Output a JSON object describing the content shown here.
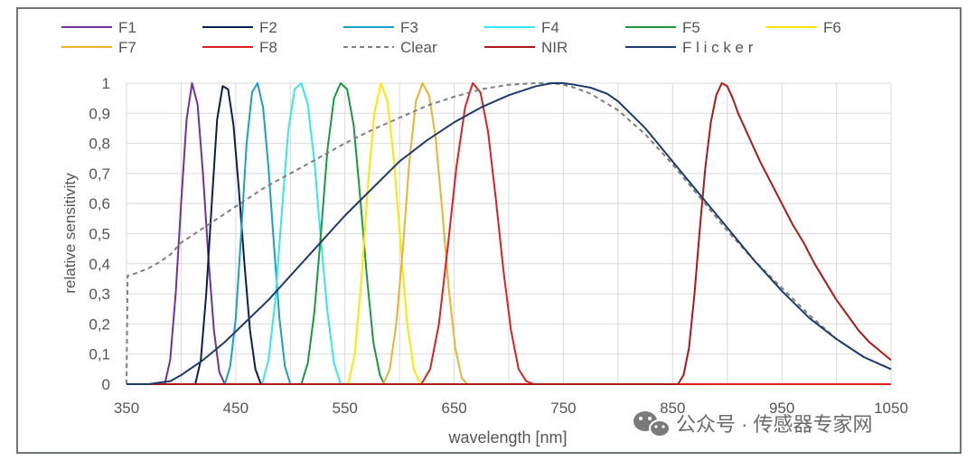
{
  "watermark": {
    "icon": "wechat-icon",
    "text": "公众号 · 传感器专家网"
  },
  "chart_data": {
    "type": "line",
    "xlabel": "wavelength [nm]",
    "ylabel": "relative sensitivity",
    "xlim": [
      350,
      1050
    ],
    "ylim": [
      0,
      1
    ],
    "x_ticks": [
      350,
      450,
      550,
      650,
      750,
      850,
      950,
      1050
    ],
    "y_ticks": [
      "0",
      "0,1",
      "0,2",
      "0,3",
      "0,4",
      "0,5",
      "0,6",
      "0,7",
      "0,8",
      "0,9",
      "1"
    ],
    "grid": true,
    "legend_position": "top",
    "series": [
      {
        "name": "F1",
        "color": "#7030a0",
        "dash": false,
        "x": [
          385,
          390,
          395,
          400,
          405,
          410,
          415,
          420,
          425,
          430,
          435,
          440
        ],
        "y": [
          0,
          0.08,
          0.3,
          0.6,
          0.88,
          1.0,
          0.93,
          0.7,
          0.42,
          0.18,
          0.04,
          0
        ]
      },
      {
        "name": "F2",
        "color": "#0b1f4f",
        "dash": false,
        "x": [
          413,
          418,
          423,
          428,
          433,
          438,
          443,
          448,
          453,
          458,
          463,
          468,
          473
        ],
        "y": [
          0,
          0.08,
          0.3,
          0.6,
          0.88,
          0.99,
          0.98,
          0.86,
          0.64,
          0.4,
          0.18,
          0.05,
          0
        ]
      },
      {
        "name": "F3",
        "color": "#1a9fc8",
        "dash": false,
        "x": [
          440,
          445,
          450,
          455,
          460,
          465,
          470,
          475,
          480,
          485,
          490,
          495,
          500
        ],
        "y": [
          0,
          0.06,
          0.22,
          0.5,
          0.8,
          0.97,
          1.0,
          0.92,
          0.72,
          0.46,
          0.22,
          0.06,
          0
        ]
      },
      {
        "name": "F4",
        "color": "#33e5f5",
        "dash": false,
        "x": [
          474,
          480,
          486,
          492,
          498,
          504,
          510,
          516,
          522,
          528,
          534,
          540,
          546
        ],
        "y": [
          0,
          0.08,
          0.27,
          0.56,
          0.84,
          0.98,
          1.0,
          0.93,
          0.74,
          0.48,
          0.24,
          0.07,
          0
        ]
      },
      {
        "name": "F5",
        "color": "#1a9a3c",
        "dash": false,
        "x": [
          510,
          516,
          522,
          528,
          534,
          540,
          546,
          552,
          558,
          564,
          570,
          576,
          582,
          586
        ],
        "y": [
          0,
          0.07,
          0.24,
          0.5,
          0.78,
          0.95,
          1.0,
          0.98,
          0.86,
          0.62,
          0.36,
          0.14,
          0.03,
          0
        ]
      },
      {
        "name": "F6",
        "color": "#ffe800",
        "dash": false,
        "x": [
          553,
          559,
          565,
          571,
          577,
          583,
          589,
          595,
          601,
          607,
          613,
          619
        ],
        "y": [
          0,
          0.1,
          0.34,
          0.66,
          0.9,
          1.0,
          0.94,
          0.74,
          0.46,
          0.2,
          0.05,
          0
        ]
      },
      {
        "name": "F7",
        "color": "#f0b030",
        "dash": false,
        "x": [
          585,
          591,
          597,
          603,
          609,
          615,
          621,
          627,
          633,
          639,
          645,
          651,
          657,
          662
        ],
        "y": [
          0,
          0.05,
          0.2,
          0.45,
          0.74,
          0.94,
          1.0,
          0.96,
          0.82,
          0.58,
          0.32,
          0.12,
          0.02,
          0
        ]
      },
      {
        "name": "F8",
        "color": "#e02020",
        "dash": false,
        "x": [
          620,
          628,
          636,
          644,
          652,
          660,
          667,
          674,
          681,
          688,
          695,
          702,
          709,
          716,
          723
        ],
        "y": [
          0,
          0.05,
          0.2,
          0.45,
          0.72,
          0.92,
          1.0,
          0.97,
          0.84,
          0.62,
          0.38,
          0.18,
          0.05,
          0.01,
          0
        ]
      },
      {
        "name": "Clear",
        "color": "#808080",
        "dash": true,
        "x": [
          350,
          351,
          360,
          370,
          380,
          390,
          400,
          425,
          450,
          475,
          500,
          525,
          550,
          575,
          600,
          625,
          650,
          675,
          700,
          725,
          740,
          750,
          760,
          775,
          800,
          825,
          850,
          875,
          900,
          925,
          950,
          975,
          1000,
          1025,
          1050
        ],
        "y": [
          0,
          0.36,
          0.37,
          0.385,
          0.405,
          0.43,
          0.47,
          0.53,
          0.59,
          0.65,
          0.7,
          0.75,
          0.8,
          0.845,
          0.885,
          0.925,
          0.955,
          0.98,
          0.995,
          1.0,
          1.0,
          0.995,
          0.985,
          0.965,
          0.91,
          0.83,
          0.73,
          0.62,
          0.51,
          0.41,
          0.32,
          0.23,
          0.15,
          0.09,
          0.05
        ]
      },
      {
        "name": "NIR",
        "color": "#b01818",
        "dash": false,
        "x": [
          855,
          860,
          865,
          870,
          875,
          880,
          885,
          890,
          895,
          900,
          905,
          910,
          920,
          930,
          940,
          950,
          960,
          970,
          980,
          990,
          1000,
          1010,
          1020,
          1030,
          1040,
          1050
        ],
        "y": [
          0,
          0.03,
          0.12,
          0.3,
          0.52,
          0.72,
          0.87,
          0.96,
          1.0,
          0.99,
          0.95,
          0.9,
          0.82,
          0.74,
          0.67,
          0.6,
          0.53,
          0.47,
          0.4,
          0.34,
          0.28,
          0.23,
          0.18,
          0.14,
          0.11,
          0.08
        ]
      },
      {
        "name": "F l i c k e r",
        "color": "#1f3b6b",
        "dash": false,
        "x": [
          370,
          380,
          390,
          400,
          420,
          440,
          460,
          480,
          500,
          525,
          550,
          575,
          600,
          625,
          650,
          675,
          700,
          725,
          740,
          750,
          760,
          775,
          790,
          800,
          825,
          850,
          875,
          900,
          925,
          950,
          975,
          1000,
          1025,
          1050
        ],
        "y": [
          0,
          0.005,
          0.01,
          0.03,
          0.08,
          0.14,
          0.21,
          0.28,
          0.36,
          0.46,
          0.56,
          0.65,
          0.74,
          0.81,
          0.87,
          0.92,
          0.96,
          0.99,
          1.0,
          1.0,
          0.995,
          0.985,
          0.965,
          0.94,
          0.85,
          0.74,
          0.63,
          0.52,
          0.41,
          0.31,
          0.22,
          0.15,
          0.09,
          0.05
        ]
      }
    ]
  }
}
